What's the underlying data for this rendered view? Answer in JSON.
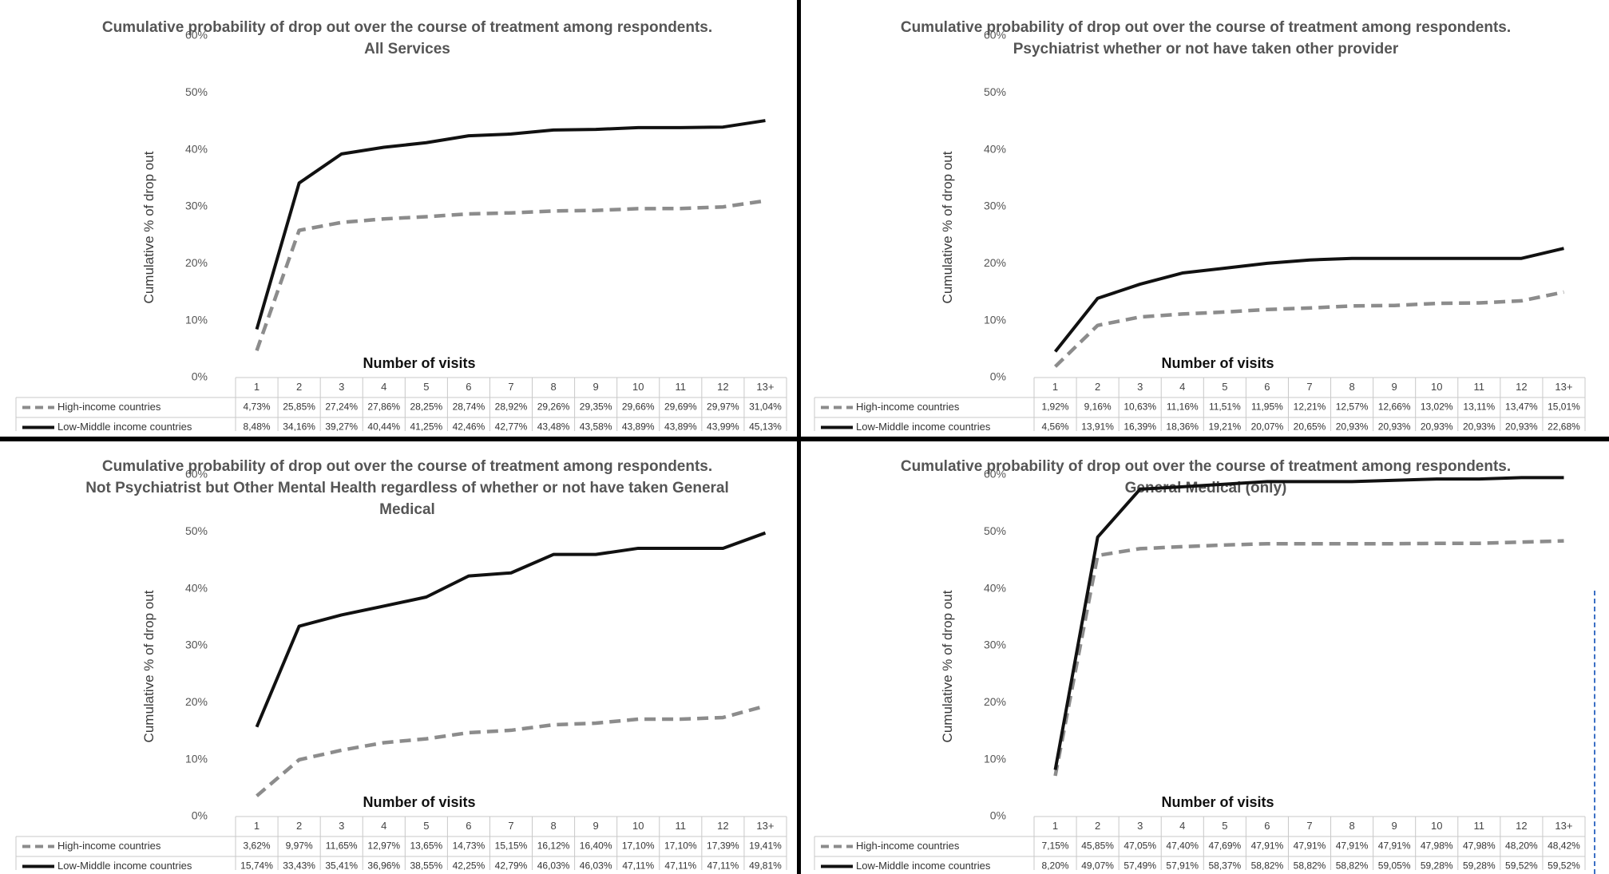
{
  "chart_data": [
    {
      "type": "line",
      "title": "Cumulative probability of drop out over the course of treatment among respondents.",
      "subtitle": "All Services",
      "xlabel": "Number of visits",
      "ylabel": "Cumulative % of drop out",
      "yticks": [
        "0%",
        "10%",
        "20%",
        "30%",
        "40%",
        "50%",
        "60%"
      ],
      "ylim": [
        0,
        60
      ],
      "categories": [
        "1",
        "2",
        "3",
        "4",
        "5",
        "6",
        "7",
        "8",
        "9",
        "10",
        "11",
        "12",
        "13+"
      ],
      "series": [
        {
          "name": "High-income countries",
          "style": "dashed",
          "color": "#8c8c8c",
          "values": [
            4.73,
            25.85,
            27.24,
            27.86,
            28.25,
            28.74,
            28.92,
            29.26,
            29.35,
            29.66,
            29.69,
            29.97,
            31.04
          ],
          "labels": [
            "4,73%",
            "25,85%",
            "27,24%",
            "27,86%",
            "28,25%",
            "28,74%",
            "28,92%",
            "29,26%",
            "29,35%",
            "29,66%",
            "29,69%",
            "29,97%",
            "31,04%"
          ]
        },
        {
          "name": "Low-Middle income countries",
          "style": "solid",
          "color": "#111111",
          "values": [
            8.48,
            34.16,
            39.27,
            40.44,
            41.25,
            42.46,
            42.77,
            43.48,
            43.58,
            43.89,
            43.89,
            43.99,
            45.13
          ],
          "labels": [
            "8,48%",
            "34,16%",
            "39,27%",
            "40,44%",
            "41,25%",
            "42,46%",
            "42,77%",
            "43,48%",
            "43,58%",
            "43,89%",
            "43,89%",
            "43,99%",
            "45,13%"
          ]
        }
      ]
    },
    {
      "type": "line",
      "title": "Cumulative probability of drop out over the course of treatment among respondents.",
      "subtitle": "Psychiatrist whether or not have taken other provider",
      "xlabel": "Number of visits",
      "ylabel": "Cumulative % of drop out",
      "yticks": [
        "0%",
        "10%",
        "20%",
        "30%",
        "40%",
        "50%",
        "60%"
      ],
      "ylim": [
        0,
        60
      ],
      "categories": [
        "1",
        "2",
        "3",
        "4",
        "5",
        "6",
        "7",
        "8",
        "9",
        "10",
        "11",
        "12",
        "13+"
      ],
      "series": [
        {
          "name": "High-income countries",
          "style": "dashed",
          "color": "#8c8c8c",
          "values": [
            1.92,
            9.16,
            10.63,
            11.16,
            11.51,
            11.95,
            12.21,
            12.57,
            12.66,
            13.02,
            13.11,
            13.47,
            15.01
          ],
          "labels": [
            "1,92%",
            "9,16%",
            "10,63%",
            "11,16%",
            "11,51%",
            "11,95%",
            "12,21%",
            "12,57%",
            "12,66%",
            "13,02%",
            "13,11%",
            "13,47%",
            "15,01%"
          ]
        },
        {
          "name": "Low-Middle income countries",
          "style": "solid",
          "color": "#111111",
          "values": [
            4.56,
            13.91,
            16.39,
            18.36,
            19.21,
            20.07,
            20.65,
            20.93,
            20.93,
            20.93,
            20.93,
            20.93,
            22.68
          ],
          "labels": [
            "4,56%",
            "13,91%",
            "16,39%",
            "18,36%",
            "19,21%",
            "20,07%",
            "20,65%",
            "20,93%",
            "20,93%",
            "20,93%",
            "20,93%",
            "20,93%",
            "22,68%"
          ]
        }
      ]
    },
    {
      "type": "line",
      "title": "Cumulative probability of drop out over the course of treatment among respondents.",
      "subtitle": "Not Psychiatrist but Other Mental Health regardless of whether or not have taken General Medical",
      "xlabel": "Number of visits",
      "ylabel": "Cumulative % of drop out",
      "yticks": [
        "0%",
        "10%",
        "20%",
        "30%",
        "40%",
        "50%",
        "60%"
      ],
      "ylim": [
        0,
        60
      ],
      "categories": [
        "1",
        "2",
        "3",
        "4",
        "5",
        "6",
        "7",
        "8",
        "9",
        "10",
        "11",
        "12",
        "13+"
      ],
      "series": [
        {
          "name": "High-income countries",
          "style": "dashed",
          "color": "#8c8c8c",
          "values": [
            3.62,
            9.97,
            11.65,
            12.97,
            13.65,
            14.73,
            15.15,
            16.12,
            16.4,
            17.1,
            17.1,
            17.39,
            19.41
          ],
          "labels": [
            "3,62%",
            "9,97%",
            "11,65%",
            "12,97%",
            "13,65%",
            "14,73%",
            "15,15%",
            "16,12%",
            "16,40%",
            "17,10%",
            "17,10%",
            "17,39%",
            "19,41%"
          ]
        },
        {
          "name": "Low-Middle income countries",
          "style": "solid",
          "color": "#111111",
          "values": [
            15.74,
            33.43,
            35.41,
            36.96,
            38.55,
            42.25,
            42.79,
            46.03,
            46.03,
            47.11,
            47.11,
            47.11,
            49.81
          ],
          "labels": [
            "15,74%",
            "33,43%",
            "35,41%",
            "36,96%",
            "38,55%",
            "42,25%",
            "42,79%",
            "46,03%",
            "46,03%",
            "47,11%",
            "47,11%",
            "47,11%",
            "49,81%"
          ]
        }
      ]
    },
    {
      "type": "line",
      "title": "Cumulative probability of drop out over the course of treatment among respondents.",
      "subtitle": "General Medical (only)",
      "xlabel": "Number of visits",
      "ylabel": "Cumulative % of drop out",
      "yticks": [
        "0%",
        "10%",
        "20%",
        "30%",
        "40%",
        "50%",
        "60%"
      ],
      "ylim": [
        0,
        60
      ],
      "categories": [
        "1",
        "2",
        "3",
        "4",
        "5",
        "6",
        "7",
        "8",
        "9",
        "10",
        "11",
        "12",
        "13+"
      ],
      "series": [
        {
          "name": "High-income countries",
          "style": "dashed",
          "color": "#8c8c8c",
          "values": [
            7.15,
            45.85,
            47.05,
            47.4,
            47.69,
            47.91,
            47.91,
            47.91,
            47.91,
            47.98,
            47.98,
            48.2,
            48.42
          ],
          "labels": [
            "7,15%",
            "45,85%",
            "47,05%",
            "47,40%",
            "47,69%",
            "47,91%",
            "47,91%",
            "47,91%",
            "47,91%",
            "47,98%",
            "47,98%",
            "48,20%",
            "48,42%"
          ]
        },
        {
          "name": "Low-Middle income countries",
          "style": "solid",
          "color": "#111111",
          "values": [
            8.2,
            49.07,
            57.49,
            57.91,
            58.37,
            58.82,
            58.82,
            58.82,
            59.05,
            59.28,
            59.28,
            59.52,
            59.52
          ],
          "labels": [
            "8,20%",
            "49,07%",
            "57,49%",
            "57,91%",
            "58,37%",
            "58,82%",
            "58,82%",
            "58,82%",
            "59,05%",
            "59,28%",
            "59,28%",
            "59,52%",
            "59,52%"
          ]
        }
      ]
    }
  ]
}
